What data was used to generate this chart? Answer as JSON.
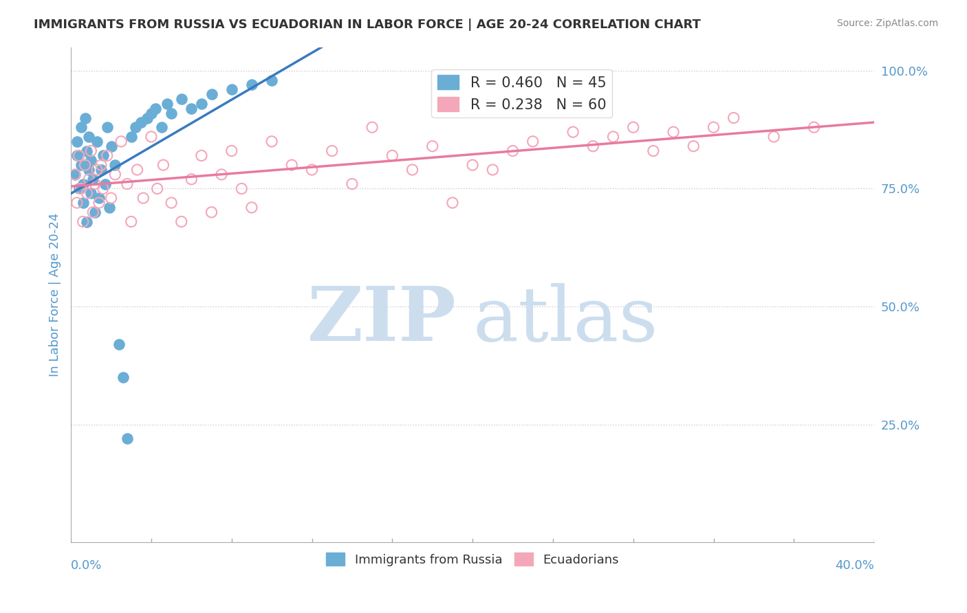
{
  "title": "IMMIGRANTS FROM RUSSIA VS ECUADORIAN IN LABOR FORCE | AGE 20-24 CORRELATION CHART",
  "source": "Source: ZipAtlas.com",
  "ylabel": "In Labor Force | Age 20-24",
  "yticklabels_right": [
    "25.0%",
    "50.0%",
    "75.0%",
    "100.0%"
  ],
  "yticklabels_right_vals": [
    0.25,
    0.5,
    0.75,
    1.0
  ],
  "legend_blue_label": "R = 0.460   N = 45",
  "legend_pink_label": "R = 0.238   N = 60",
  "legend_blue_color": "#6aaed6",
  "legend_pink_color": "#f4a7b9",
  "trend_blue_color": "#3a7abf",
  "trend_pink_color": "#e87aa0",
  "background_color": "#ffffff",
  "grid_color": "#cccccc",
  "title_color": "#333333",
  "axis_label_color": "#5599cc",
  "watermark_color": "#ccddee",
  "blue_scatter_x": [
    0.002,
    0.003,
    0.003,
    0.004,
    0.005,
    0.005,
    0.006,
    0.006,
    0.007,
    0.008,
    0.008,
    0.009,
    0.009,
    0.01,
    0.01,
    0.011,
    0.012,
    0.013,
    0.014,
    0.015,
    0.016,
    0.017,
    0.018,
    0.019,
    0.02,
    0.022,
    0.024,
    0.026,
    0.028,
    0.03,
    0.032,
    0.035,
    0.038,
    0.04,
    0.042,
    0.045,
    0.048,
    0.05,
    0.055,
    0.06,
    0.065,
    0.07,
    0.08,
    0.09,
    0.1
  ],
  "blue_scatter_y": [
    0.78,
    0.82,
    0.85,
    0.75,
    0.8,
    0.88,
    0.72,
    0.76,
    0.9,
    0.83,
    0.68,
    0.79,
    0.86,
    0.74,
    0.81,
    0.77,
    0.7,
    0.85,
    0.73,
    0.79,
    0.82,
    0.76,
    0.88,
    0.71,
    0.84,
    0.8,
    0.42,
    0.35,
    0.22,
    0.86,
    0.88,
    0.89,
    0.9,
    0.91,
    0.92,
    0.88,
    0.93,
    0.91,
    0.94,
    0.92,
    0.93,
    0.95,
    0.96,
    0.97,
    0.98
  ],
  "pink_scatter_x": [
    0.002,
    0.003,
    0.004,
    0.005,
    0.006,
    0.007,
    0.008,
    0.009,
    0.01,
    0.011,
    0.012,
    0.013,
    0.014,
    0.015,
    0.016,
    0.018,
    0.02,
    0.022,
    0.025,
    0.028,
    0.03,
    0.033,
    0.036,
    0.04,
    0.043,
    0.046,
    0.05,
    0.055,
    0.06,
    0.065,
    0.07,
    0.075,
    0.08,
    0.085,
    0.09,
    0.1,
    0.11,
    0.12,
    0.13,
    0.14,
    0.15,
    0.16,
    0.17,
    0.18,
    0.19,
    0.2,
    0.21,
    0.22,
    0.23,
    0.25,
    0.26,
    0.27,
    0.28,
    0.29,
    0.3,
    0.31,
    0.32,
    0.33,
    0.35,
    0.37
  ],
  "pink_scatter_y": [
    0.78,
    0.72,
    0.82,
    0.75,
    0.68,
    0.8,
    0.74,
    0.77,
    0.83,
    0.7,
    0.76,
    0.79,
    0.72,
    0.8,
    0.75,
    0.82,
    0.73,
    0.78,
    0.85,
    0.76,
    0.68,
    0.79,
    0.73,
    0.86,
    0.75,
    0.8,
    0.72,
    0.68,
    0.77,
    0.82,
    0.7,
    0.78,
    0.83,
    0.75,
    0.71,
    0.85,
    0.8,
    0.79,
    0.83,
    0.76,
    0.88,
    0.82,
    0.79,
    0.84,
    0.72,
    0.8,
    0.79,
    0.83,
    0.85,
    0.87,
    0.84,
    0.86,
    0.88,
    0.83,
    0.87,
    0.84,
    0.88,
    0.9,
    0.86,
    0.88
  ],
  "xlim": [
    0.0,
    0.4
  ],
  "ylim": [
    0.0,
    1.05
  ],
  "figsize": [
    14.06,
    8.92
  ],
  "dpi": 100
}
